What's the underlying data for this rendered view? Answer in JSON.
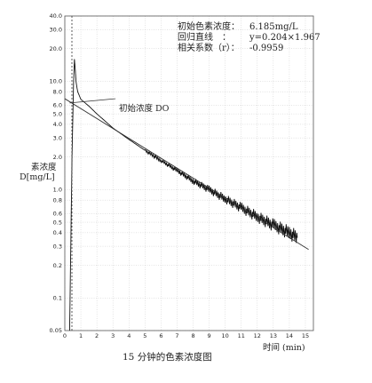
{
  "chart_data": {
    "type": "line",
    "title": "15 分钟的色素浓度图",
    "xlabel": "时间 (min)",
    "ylabel_line1": "素浓度",
    "ylabel_line2": "D[mg/L]",
    "yscale": "log",
    "xlim": [
      0,
      15.5
    ],
    "ylim": [
      0.05,
      40
    ],
    "grid": true,
    "x_ticks": [
      "0",
      "1",
      "2",
      "3",
      "4",
      "5",
      "6",
      "7",
      "8",
      "9",
      "10",
      "11",
      "12",
      "13",
      "14",
      "15"
    ],
    "y_ticks": [
      {
        "label": "0.05",
        "value": 0.05
      },
      {
        "label": "0.1",
        "value": 0.1
      },
      {
        "label": "0.2",
        "value": 0.2
      },
      {
        "label": "0.3",
        "value": 0.3
      },
      {
        "label": "0.4",
        "value": 0.4
      },
      {
        "label": "0.5",
        "value": 0.5
      },
      {
        "label": "0.6",
        "value": 0.6
      },
      {
        "label": "0.8",
        "value": 0.8
      },
      {
        "label": "1.0",
        "value": 1.0
      },
      {
        "label": "2.0",
        "value": 2.0
      },
      {
        "label": "3.0",
        "value": 3.0
      },
      {
        "label": "4.0",
        "value": 4.0
      },
      {
        "label": "5.0",
        "value": 5.0
      },
      {
        "label": "6.0",
        "value": 6.0
      },
      {
        "label": "8.0",
        "value": 8.0
      },
      {
        "label": "10.0",
        "value": 10.0
      },
      {
        "label": "20.0",
        "value": 20.0
      },
      {
        "label": "30.0",
        "value": 30.0
      },
      {
        "label": "40.0",
        "value": 40.0
      }
    ],
    "series": [
      {
        "values_description_free": true,
        "x": [
          0.3,
          0.45,
          0.55,
          0.6,
          0.65,
          0.7,
          0.8,
          1.0,
          1.5,
          2.0,
          3.0,
          4.0,
          5.0,
          6.0,
          7.0,
          8.0,
          9.0,
          10.0,
          11.0,
          12.0,
          13.0,
          14.0,
          14.5
        ],
        "y": [
          0.05,
          2.0,
          10.0,
          16.0,
          13.0,
          10.0,
          8.0,
          6.8,
          5.9,
          5.0,
          3.7,
          2.9,
          2.3,
          1.85,
          1.5,
          1.2,
          1.0,
          0.82,
          0.68,
          0.56,
          0.47,
          0.4,
          0.36
        ]
      },
      {
        "x": [
          0,
          15.2
        ],
        "y": [
          6.9,
          0.28
        ]
      }
    ],
    "annotation_label": "初始浓度 DO",
    "annotation_point": {
      "x": 0.3,
      "y": 6.185
    },
    "annotation_anchor": {
      "x": 2.5,
      "y": 6.9
    },
    "info": {
      "line1_label": "初始色素浓度：",
      "line1_value": "6.185mg/L",
      "line2_label": "回归直线　：",
      "line2_value": "y=0.204×1.967",
      "line3_label": "相关系数（r）：",
      "line3_value": "-0.9959"
    }
  }
}
